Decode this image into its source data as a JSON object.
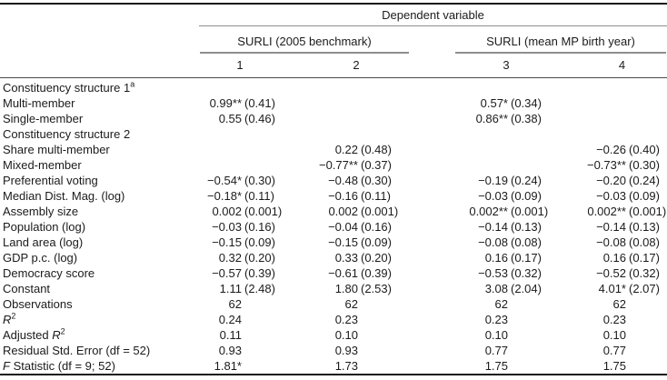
{
  "colors": {
    "background": "#ffffff",
    "text": "#1b1b1b",
    "rule_black": "#151515",
    "rule_gray": "#8e8e8e"
  },
  "table": {
    "top_header": "Dependent variable",
    "groups": [
      {
        "label": "SURLI (2005 benchmark)",
        "columns": [
          "1",
          "2"
        ]
      },
      {
        "label": "SURLI (mean MP birth year)",
        "columns": [
          "3",
          "4"
        ]
      }
    ],
    "column_numbers": [
      "1",
      "2",
      "3",
      "4"
    ],
    "rows": [
      {
        "label": [
          {
            "t": "Constituency structure 1"
          },
          {
            "t": "a",
            "sup": 1
          }
        ],
        "cells": [
          null,
          null,
          null,
          null
        ]
      },
      {
        "label": [
          {
            "t": "Multi-member"
          }
        ],
        "cells": [
          [
            "0.99**",
            "(0.41)"
          ],
          null,
          [
            "0.57*",
            "(0.34)"
          ],
          null
        ]
      },
      {
        "label": [
          {
            "t": "Single-member"
          }
        ],
        "cells": [
          [
            "0.55",
            "(0.46)"
          ],
          null,
          [
            "0.86**",
            "(0.38)"
          ],
          null
        ]
      },
      {
        "label": [
          {
            "t": "Constituency structure 2"
          }
        ],
        "cells": [
          null,
          null,
          null,
          null
        ]
      },
      {
        "label": [
          {
            "t": "Share multi-member"
          }
        ],
        "cells": [
          null,
          [
            "0.22",
            "(0.48)"
          ],
          null,
          [
            "−0.26",
            "(0.40)"
          ]
        ]
      },
      {
        "label": [
          {
            "t": "Mixed-member"
          }
        ],
        "cells": [
          null,
          [
            "−0.77**",
            "(0.37)"
          ],
          null,
          [
            "−0.73**",
            "(0.30)"
          ]
        ]
      },
      {
        "label": [
          {
            "t": "Preferential voting"
          }
        ],
        "cells": [
          [
            "−0.54*",
            "(0.30)"
          ],
          [
            "−0.48",
            "(0.30)"
          ],
          [
            "−0.19",
            "(0.24)"
          ],
          [
            "−0.20",
            "(0.24)"
          ]
        ]
      },
      {
        "label": [
          {
            "t": "Median Dist. Mag. (log)"
          }
        ],
        "cells": [
          [
            "−0.18*",
            "(0.11)"
          ],
          [
            "−0.16",
            "(0.11)"
          ],
          [
            "−0.03",
            "(0.09)"
          ],
          [
            "−0.03",
            "(0.09)"
          ]
        ]
      },
      {
        "label": [
          {
            "t": "Assembly size"
          }
        ],
        "cells": [
          [
            "0.002",
            "(0.001)"
          ],
          [
            "0.002",
            "(0.001)"
          ],
          [
            "0.002**",
            "(0.001)"
          ],
          [
            "0.002**",
            "(0.001)"
          ]
        ]
      },
      {
        "label": [
          {
            "t": "Population (log)"
          }
        ],
        "cells": [
          [
            "−0.03",
            "(0.16)"
          ],
          [
            "−0.04",
            "(0.16)"
          ],
          [
            "−0.14",
            "(0.13)"
          ],
          [
            "−0.14",
            "(0.13)"
          ]
        ]
      },
      {
        "label": [
          {
            "t": "Land area (log)"
          }
        ],
        "cells": [
          [
            "−0.15",
            "(0.09)"
          ],
          [
            "−0.15",
            "(0.09)"
          ],
          [
            "−0.08",
            "(0.08)"
          ],
          [
            "−0.08",
            "(0.08)"
          ]
        ]
      },
      {
        "label": [
          {
            "t": "GDP p.c. (log)"
          }
        ],
        "cells": [
          [
            "0.32",
            "(0.20)"
          ],
          [
            "0.33",
            "(0.20)"
          ],
          [
            "0.16",
            "(0.17)"
          ],
          [
            "0.16",
            "(0.17)"
          ]
        ]
      },
      {
        "label": [
          {
            "t": "Democracy score"
          }
        ],
        "cells": [
          [
            "−0.57",
            "(0.39)"
          ],
          [
            "−0.61",
            "(0.39)"
          ],
          [
            "−0.53",
            "(0.32)"
          ],
          [
            "−0.52",
            "(0.32)"
          ]
        ]
      },
      {
        "label": [
          {
            "t": "Constant"
          }
        ],
        "cells": [
          [
            "1.11",
            "(2.48)"
          ],
          [
            "1.80",
            "(2.53)"
          ],
          [
            "3.08",
            "(2.04)"
          ],
          [
            "4.01*",
            "(2.07)"
          ]
        ]
      },
      {
        "label": [
          {
            "t": "Observations"
          }
        ],
        "cells": [
          [
            "62"
          ],
          [
            "62"
          ],
          [
            "62"
          ],
          [
            "62"
          ]
        ]
      },
      {
        "label": [
          {
            "t": "R",
            "i": 1
          },
          {
            "t": "2",
            "sup": 1
          }
        ],
        "cells": [
          [
            "0.24"
          ],
          [
            "0.23"
          ],
          [
            "0.23"
          ],
          [
            "0.23"
          ]
        ]
      },
      {
        "label": [
          {
            "t": "Adjusted "
          },
          {
            "t": "R",
            "i": 1
          },
          {
            "t": "2",
            "sup": 1
          }
        ],
        "cells": [
          [
            "0.11"
          ],
          [
            "0.10"
          ],
          [
            "0.10"
          ],
          [
            "0.10"
          ]
        ]
      },
      {
        "label": [
          {
            "t": "Residual Std. Error (df = 52)"
          }
        ],
        "cells": [
          [
            "0.93"
          ],
          [
            "0.93"
          ],
          [
            "0.77"
          ],
          [
            "0.77"
          ]
        ]
      },
      {
        "label": [
          {
            "t": "F",
            "i": 1
          },
          {
            "t": " Statistic (df = 9; 52)"
          }
        ],
        "cells": [
          [
            "1.81*"
          ],
          [
            "1.73"
          ],
          [
            "1.75"
          ],
          [
            "1.75"
          ]
        ]
      }
    ]
  }
}
